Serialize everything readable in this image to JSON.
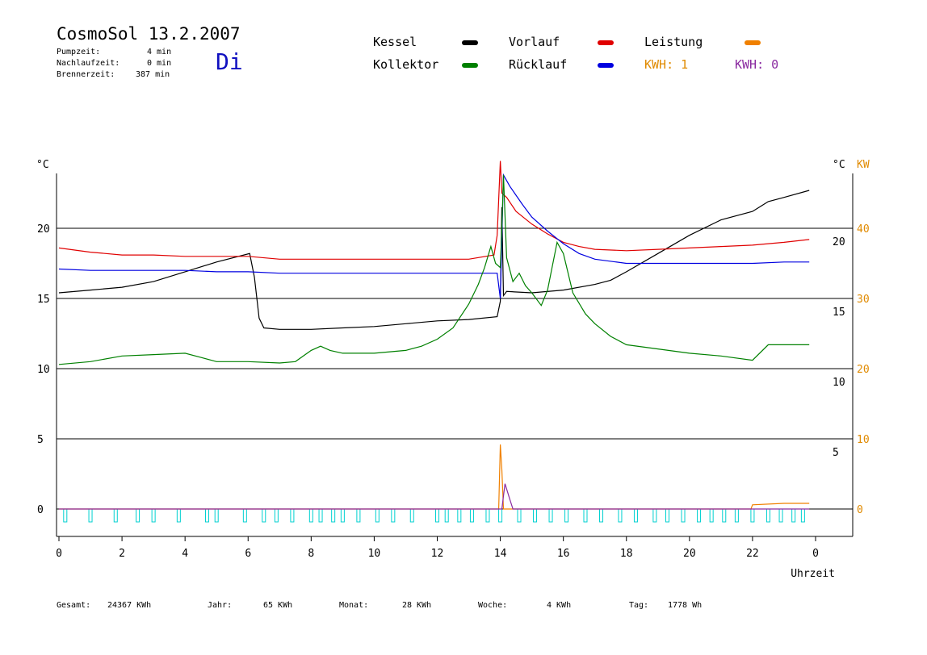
{
  "header": {
    "title": "CosmoSol 13.2.2007",
    "day": "Di",
    "info": [
      {
        "label": "Pumpzeit:",
        "value": "4 min"
      },
      {
        "label": "Nachlaufzeit:",
        "value": "0 min"
      },
      {
        "label": "Brennerzeit:",
        "value": "387 min"
      }
    ]
  },
  "legend": {
    "items": [
      {
        "label": "Kessel",
        "color": "#000000"
      },
      {
        "label": "Vorlauf",
        "color": "#e00000"
      },
      {
        "label": "Leistung",
        "color": "#f08000"
      },
      {
        "label": "Kollektor",
        "color": "#008000"
      },
      {
        "label": "Rücklauf",
        "color": "#0000e0"
      }
    ],
    "kwh1": "KWH: 1",
    "kwh1_color": "#e08a00",
    "kwh0": "KWH: 0",
    "kwh0_color": "#8a2aa0"
  },
  "footer": {
    "totals": [
      {
        "label": "Gesamt:",
        "value": "24367 KWh"
      },
      {
        "label": "Jahr:",
        "value": "65 KWh"
      },
      {
        "label": "Monat:",
        "value": "28 KWh"
      },
      {
        "label": "Woche:",
        "value": "4 KWh"
      },
      {
        "label": "Tag:",
        "value": "1778 Wh"
      }
    ]
  },
  "chart_data": {
    "type": "line",
    "xlabel": "Uhrzeit",
    "xlim": [
      0,
      24
    ],
    "x_ticks": [
      "0",
      "2",
      "4",
      "6",
      "8",
      "10",
      "12",
      "14",
      "16",
      "18",
      "20",
      "22",
      "0"
    ],
    "y_left_unit": "°C",
    "y_right_unit": "°C",
    "y_right_unit2": "KW",
    "ylim_top": [
      5,
      25
    ],
    "ylim_bottom": [
      -1.5,
      5
    ],
    "y_left_ticks": [
      "20",
      "15",
      "10",
      "5",
      "0"
    ],
    "y_right_ticks": [
      "20",
      "15",
      "10",
      "5"
    ],
    "y_kw_ticks": [
      "40",
      "30",
      "20",
      "10",
      "0"
    ],
    "grid": "horizontal",
    "series": [
      {
        "name": "Kessel",
        "color": "#000000",
        "points": [
          [
            0,
            15.4
          ],
          [
            1,
            15.6
          ],
          [
            2,
            15.8
          ],
          [
            3,
            16.2
          ],
          [
            4,
            16.9
          ],
          [
            5,
            17.6
          ],
          [
            6.05,
            18.2
          ],
          [
            6.2,
            16.5
          ],
          [
            6.35,
            13.6
          ],
          [
            6.5,
            12.9
          ],
          [
            7,
            12.8
          ],
          [
            8,
            12.8
          ],
          [
            9,
            12.9
          ],
          [
            10,
            13.0
          ],
          [
            11,
            13.2
          ],
          [
            12,
            13.4
          ],
          [
            13,
            13.5
          ],
          [
            13.9,
            13.7
          ],
          [
            14.0,
            14.8
          ],
          [
            14.05,
            21.5
          ],
          [
            14.1,
            15.2
          ],
          [
            14.2,
            15.5
          ],
          [
            15,
            15.4
          ],
          [
            16,
            15.6
          ],
          [
            17,
            16.0
          ],
          [
            17.5,
            16.3
          ],
          [
            18,
            16.9
          ],
          [
            19,
            18.2
          ],
          [
            20,
            19.5
          ],
          [
            21,
            20.6
          ],
          [
            22,
            21.2
          ],
          [
            22.5,
            21.9
          ],
          [
            23,
            22.2
          ],
          [
            23.8,
            22.7
          ]
        ]
      },
      {
        "name": "Vorlauf",
        "color": "#e00000",
        "points": [
          [
            0,
            18.6
          ],
          [
            1,
            18.3
          ],
          [
            2,
            18.1
          ],
          [
            3,
            18.1
          ],
          [
            4,
            18.0
          ],
          [
            5,
            18.0
          ],
          [
            6,
            18.0
          ],
          [
            7,
            17.8
          ],
          [
            8,
            17.8
          ],
          [
            9,
            17.8
          ],
          [
            10,
            17.8
          ],
          [
            11,
            17.8
          ],
          [
            12,
            17.8
          ],
          [
            13,
            17.8
          ],
          [
            13.8,
            18.1
          ],
          [
            13.9,
            19.5
          ],
          [
            14.0,
            24.8
          ],
          [
            14.05,
            22.5
          ],
          [
            14.2,
            22.2
          ],
          [
            14.5,
            21.2
          ],
          [
            15,
            20.3
          ],
          [
            15.5,
            19.6
          ],
          [
            16,
            19.0
          ],
          [
            16.5,
            18.7
          ],
          [
            17,
            18.5
          ],
          [
            18,
            18.4
          ],
          [
            19,
            18.5
          ],
          [
            20,
            18.6
          ],
          [
            21,
            18.7
          ],
          [
            22,
            18.8
          ],
          [
            23,
            19.0
          ],
          [
            23.8,
            19.2
          ]
        ]
      },
      {
        "name": "Rücklauf",
        "color": "#0000e0",
        "points": [
          [
            0,
            17.1
          ],
          [
            1,
            17.0
          ],
          [
            2,
            17.0
          ],
          [
            3,
            17.0
          ],
          [
            4,
            17.0
          ],
          [
            5,
            16.9
          ],
          [
            6,
            16.9
          ],
          [
            7,
            16.8
          ],
          [
            8,
            16.8
          ],
          [
            9,
            16.8
          ],
          [
            10,
            16.8
          ],
          [
            11,
            16.8
          ],
          [
            12,
            16.8
          ],
          [
            13,
            16.8
          ],
          [
            13.9,
            16.8
          ],
          [
            14.0,
            15.0
          ],
          [
            14.1,
            23.8
          ],
          [
            14.3,
            23.0
          ],
          [
            14.7,
            21.7
          ],
          [
            15,
            20.8
          ],
          [
            15.5,
            19.8
          ],
          [
            16,
            18.9
          ],
          [
            16.5,
            18.2
          ],
          [
            17,
            17.8
          ],
          [
            18,
            17.5
          ],
          [
            19,
            17.5
          ],
          [
            20,
            17.5
          ],
          [
            21,
            17.5
          ],
          [
            22,
            17.5
          ],
          [
            23,
            17.6
          ],
          [
            23.8,
            17.6
          ]
        ]
      },
      {
        "name": "Kollektor",
        "color": "#008000",
        "points": [
          [
            0,
            10.3
          ],
          [
            1,
            10.5
          ],
          [
            2,
            10.9
          ],
          [
            3,
            11.0
          ],
          [
            4,
            11.1
          ],
          [
            4.5,
            10.8
          ],
          [
            5,
            10.5
          ],
          [
            6,
            10.5
          ],
          [
            7,
            10.4
          ],
          [
            7.5,
            10.5
          ],
          [
            8,
            11.3
          ],
          [
            8.3,
            11.6
          ],
          [
            8.6,
            11.3
          ],
          [
            9,
            11.1
          ],
          [
            10,
            11.1
          ],
          [
            11,
            11.3
          ],
          [
            11.5,
            11.6
          ],
          [
            12,
            12.1
          ],
          [
            12.5,
            12.9
          ],
          [
            13,
            14.6
          ],
          [
            13.3,
            16.0
          ],
          [
            13.5,
            17.2
          ],
          [
            13.7,
            18.7
          ],
          [
            13.85,
            17.5
          ],
          [
            14.0,
            17.2
          ],
          [
            14.05,
            20.0
          ],
          [
            14.1,
            23.8
          ],
          [
            14.2,
            17.9
          ],
          [
            14.4,
            16.2
          ],
          [
            14.6,
            16.8
          ],
          [
            14.8,
            15.9
          ],
          [
            15,
            15.4
          ],
          [
            15.3,
            14.5
          ],
          [
            15.5,
            15.6
          ],
          [
            15.8,
            19.0
          ],
          [
            16,
            18.2
          ],
          [
            16.3,
            15.4
          ],
          [
            16.7,
            13.9
          ],
          [
            17,
            13.2
          ],
          [
            17.5,
            12.3
          ],
          [
            18,
            11.7
          ],
          [
            19,
            11.4
          ],
          [
            20,
            11.1
          ],
          [
            21,
            10.9
          ],
          [
            22,
            10.6
          ],
          [
            22.5,
            11.7
          ],
          [
            23,
            11.7
          ],
          [
            23.8,
            11.7
          ]
        ]
      },
      {
        "name": "Leistung",
        "color": "#f08000",
        "points": [
          [
            0,
            0
          ],
          [
            13.95,
            0
          ],
          [
            14.0,
            4.6
          ],
          [
            14.05,
            2.8
          ],
          [
            14.1,
            0
          ],
          [
            21.95,
            0
          ],
          [
            22.0,
            0.3
          ],
          [
            23,
            0.4
          ],
          [
            23.8,
            0.4
          ]
        ]
      },
      {
        "name": "",
        "color": "#8a2aa0",
        "points": [
          [
            0,
            0
          ],
          [
            14.05,
            0
          ],
          [
            14.15,
            1.8
          ],
          [
            14.3,
            0.7
          ],
          [
            14.4,
            0
          ],
          [
            23.8,
            0
          ]
        ]
      }
    ],
    "pump_pulses": [
      0.2,
      1.0,
      1.8,
      2.5,
      3.0,
      3.8,
      4.7,
      5.0,
      5.9,
      6.5,
      6.9,
      7.4,
      8.0,
      8.3,
      8.7,
      9.0,
      9.5,
      10.1,
      10.6,
      11.2,
      12.0,
      12.3,
      12.7,
      13.1,
      13.6,
      14.0,
      14.6,
      15.1,
      15.6,
      16.1,
      16.7,
      17.2,
      17.8,
      18.3,
      18.9,
      19.3,
      19.8,
      20.3,
      20.7,
      21.1,
      21.5,
      22.0,
      22.5,
      22.9,
      23.3,
      23.6
    ],
    "pump_color": "#00d0d0"
  }
}
